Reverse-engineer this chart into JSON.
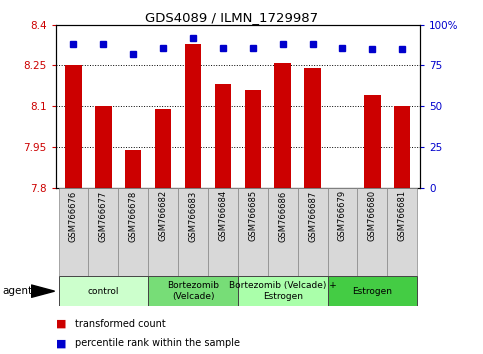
{
  "title": "GDS4089 / ILMN_1729987",
  "samples": [
    "GSM766676",
    "GSM766677",
    "GSM766678",
    "GSM766682",
    "GSM766683",
    "GSM766684",
    "GSM766685",
    "GSM766686",
    "GSM766687",
    "GSM766679",
    "GSM766680",
    "GSM766681"
  ],
  "bar_values": [
    8.25,
    8.1,
    7.94,
    8.09,
    8.33,
    8.18,
    8.16,
    8.26,
    8.24,
    7.8,
    8.14,
    8.1
  ],
  "percentile_values": [
    88,
    88,
    82,
    86,
    92,
    86,
    86,
    88,
    88,
    86,
    85,
    85
  ],
  "ylim_left": [
    7.8,
    8.4
  ],
  "ylim_right": [
    0,
    100
  ],
  "yticks_left": [
    7.8,
    7.95,
    8.1,
    8.25,
    8.4
  ],
  "ytick_labels_left": [
    "7.8",
    "7.95",
    "8.1",
    "8.25",
    "8.4"
  ],
  "yticks_right": [
    0,
    25,
    50,
    75,
    100
  ],
  "ytick_labels_right": [
    "0",
    "25",
    "50",
    "75",
    "100%"
  ],
  "bar_color": "#CC0000",
  "dot_color": "#0000CC",
  "bar_width": 0.55,
  "groups": [
    {
      "label": "control",
      "start": 0,
      "end": 2,
      "color": "#ccffcc"
    },
    {
      "label": "Bortezomib\n(Velcade)",
      "start": 3,
      "end": 5,
      "color": "#77dd77"
    },
    {
      "label": "Bortezomib (Velcade) +\nEstrogen",
      "start": 6,
      "end": 8,
      "color": "#aaffaa"
    },
    {
      "label": "Estrogen",
      "start": 9,
      "end": 11,
      "color": "#44cc44"
    }
  ],
  "grid_color": "black",
  "bg_color": "white",
  "dot_size": 5
}
